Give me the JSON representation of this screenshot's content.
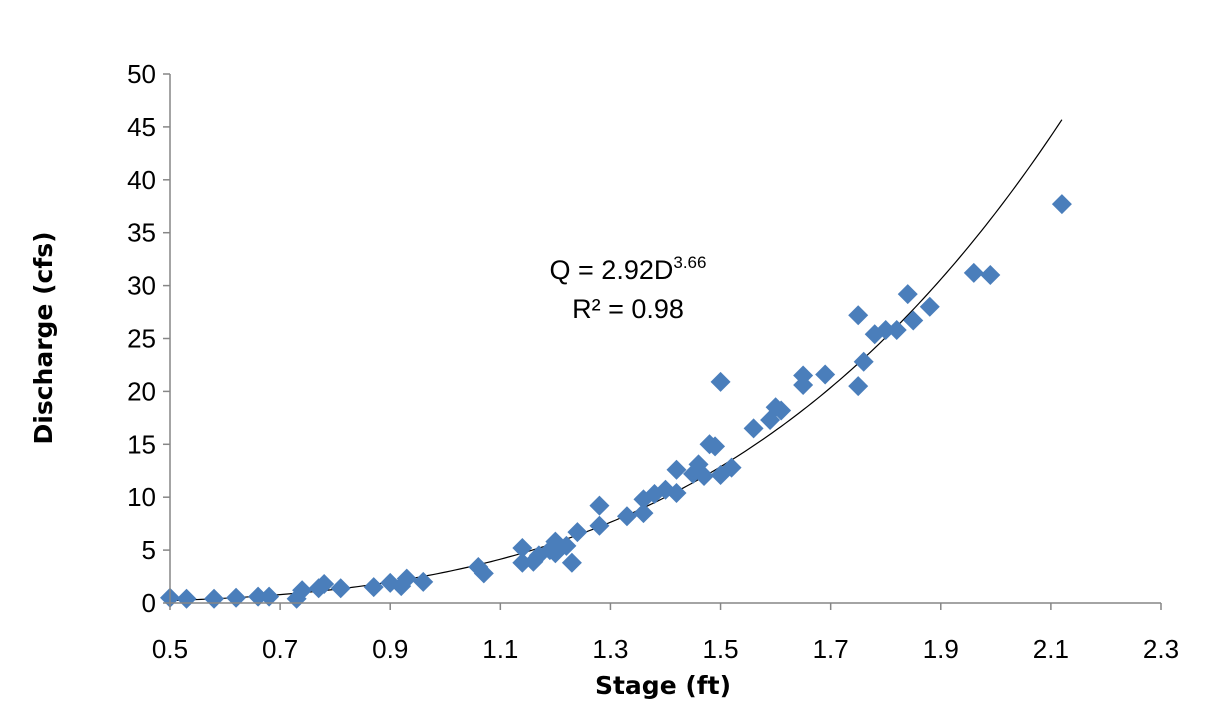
{
  "chart_data": {
    "type": "scatter",
    "xlabel": "Stage (ft)",
    "ylabel": "Discharge (cfs)",
    "xlim": [
      0.5,
      2.3
    ],
    "ylim": [
      0,
      50
    ],
    "xticks": [
      "0.5",
      "0.7",
      "0.9",
      "1.1",
      "1.3",
      "1.5",
      "1.7",
      "1.9",
      "2.1",
      "2.3"
    ],
    "yticks": [
      "0",
      "5",
      "10",
      "15",
      "20",
      "25",
      "30",
      "35",
      "40",
      "45",
      "50"
    ],
    "grid": false,
    "legend": "none",
    "marker": "diamond",
    "marker_color": "#4a7ebb",
    "trendline": {
      "type": "power",
      "coefficient": 2.92,
      "exponent": 3.66,
      "x_start": 0.5,
      "x_end": 2.12,
      "color": "#000000"
    },
    "annotation": {
      "equation_base": "Q = 2.92D",
      "equation_exponent": "3.66",
      "r_squared": "R² = 0.98"
    },
    "points": [
      {
        "x": 0.5,
        "y": 0.5
      },
      {
        "x": 0.53,
        "y": 0.4
      },
      {
        "x": 0.58,
        "y": 0.4
      },
      {
        "x": 0.62,
        "y": 0.5
      },
      {
        "x": 0.66,
        "y": 0.6
      },
      {
        "x": 0.68,
        "y": 0.6
      },
      {
        "x": 0.73,
        "y": 0.4
      },
      {
        "x": 0.74,
        "y": 1.2
      },
      {
        "x": 0.77,
        "y": 1.4
      },
      {
        "x": 0.78,
        "y": 1.8
      },
      {
        "x": 0.81,
        "y": 1.4
      },
      {
        "x": 0.87,
        "y": 1.5
      },
      {
        "x": 0.9,
        "y": 1.9
      },
      {
        "x": 0.92,
        "y": 1.6
      },
      {
        "x": 0.93,
        "y": 2.3
      },
      {
        "x": 0.96,
        "y": 2.0
      },
      {
        "x": 1.06,
        "y": 3.4
      },
      {
        "x": 1.07,
        "y": 2.8
      },
      {
        "x": 1.14,
        "y": 5.2
      },
      {
        "x": 1.14,
        "y": 3.8
      },
      {
        "x": 1.16,
        "y": 3.9
      },
      {
        "x": 1.17,
        "y": 4.5
      },
      {
        "x": 1.19,
        "y": 5.0
      },
      {
        "x": 1.2,
        "y": 5.8
      },
      {
        "x": 1.2,
        "y": 4.7
      },
      {
        "x": 1.22,
        "y": 5.4
      },
      {
        "x": 1.23,
        "y": 3.8
      },
      {
        "x": 1.24,
        "y": 6.7
      },
      {
        "x": 1.28,
        "y": 7.3
      },
      {
        "x": 1.28,
        "y": 9.2
      },
      {
        "x": 1.33,
        "y": 8.2
      },
      {
        "x": 1.36,
        "y": 8.5
      },
      {
        "x": 1.36,
        "y": 9.8
      },
      {
        "x": 1.38,
        "y": 10.3
      },
      {
        "x": 1.4,
        "y": 10.7
      },
      {
        "x": 1.42,
        "y": 12.6
      },
      {
        "x": 1.42,
        "y": 10.4
      },
      {
        "x": 1.45,
        "y": 12.2
      },
      {
        "x": 1.46,
        "y": 13.1
      },
      {
        "x": 1.47,
        "y": 12.0
      },
      {
        "x": 1.48,
        "y": 15.0
      },
      {
        "x": 1.49,
        "y": 14.8
      },
      {
        "x": 1.5,
        "y": 12.1
      },
      {
        "x": 1.52,
        "y": 12.8
      },
      {
        "x": 1.5,
        "y": 20.9
      },
      {
        "x": 1.56,
        "y": 16.5
      },
      {
        "x": 1.59,
        "y": 17.3
      },
      {
        "x": 1.6,
        "y": 18.5
      },
      {
        "x": 1.61,
        "y": 18.2
      },
      {
        "x": 1.65,
        "y": 21.5
      },
      {
        "x": 1.65,
        "y": 20.6
      },
      {
        "x": 1.69,
        "y": 21.6
      },
      {
        "x": 1.75,
        "y": 27.2
      },
      {
        "x": 1.75,
        "y": 20.5
      },
      {
        "x": 1.76,
        "y": 22.8
      },
      {
        "x": 1.78,
        "y": 25.4
      },
      {
        "x": 1.8,
        "y": 25.8
      },
      {
        "x": 1.82,
        "y": 25.8
      },
      {
        "x": 1.84,
        "y": 29.2
      },
      {
        "x": 1.85,
        "y": 26.7
      },
      {
        "x": 1.88,
        "y": 28.0
      },
      {
        "x": 1.96,
        "y": 31.2
      },
      {
        "x": 1.99,
        "y": 31.0
      },
      {
        "x": 2.12,
        "y": 37.7
      }
    ]
  }
}
